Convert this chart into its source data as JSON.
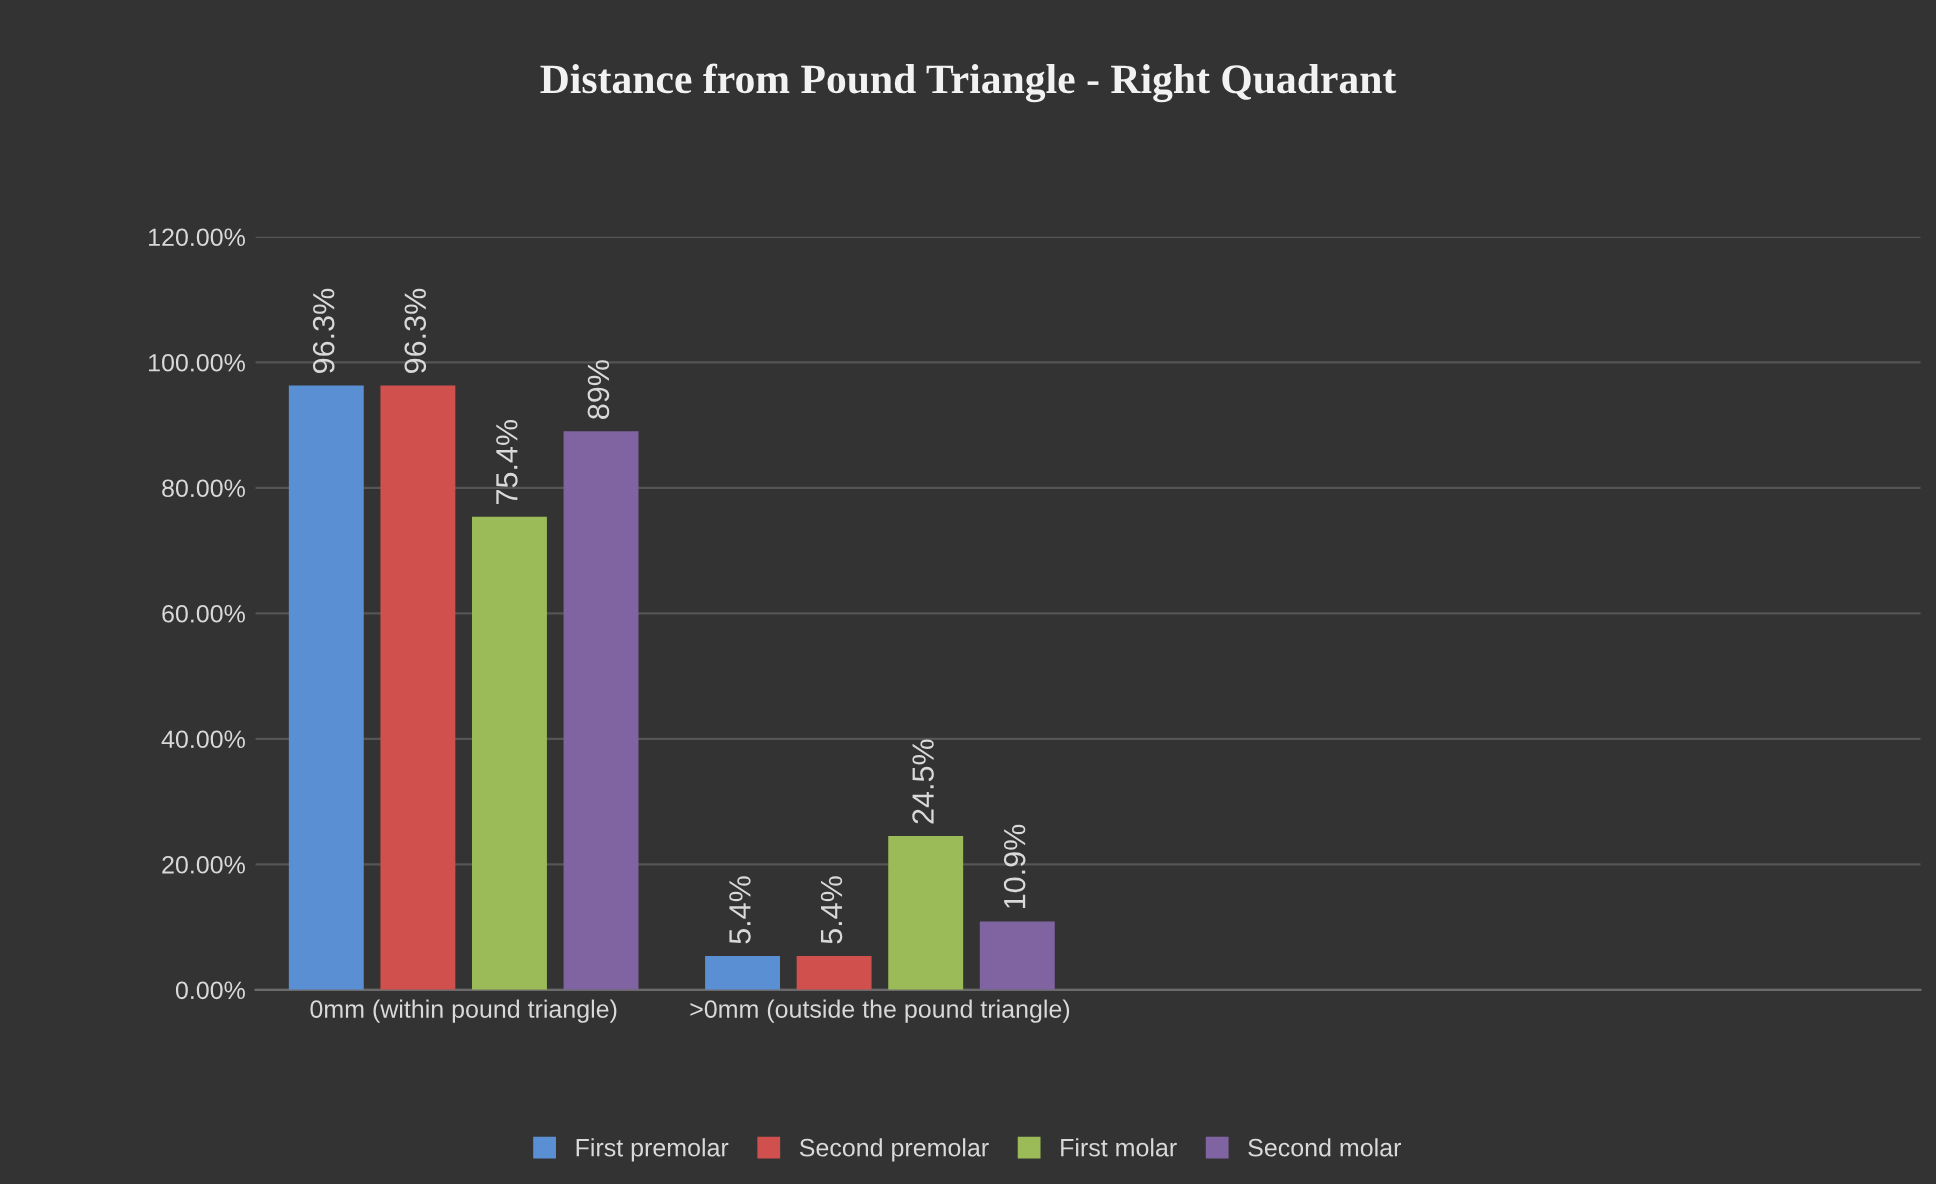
{
  "chart_data": {
    "type": "bar",
    "title": "Distance from Pound Triangle - Right Quadrant",
    "categories": [
      "0mm (within pound triangle)",
      ">0mm (outside the pound triangle)",
      null,
      null
    ],
    "series": [
      {
        "name": "First premolar",
        "color": "#5b8fd4",
        "values": [
          96.3,
          5.4,
          null,
          null
        ],
        "value_labels": [
          "96.3%",
          "5.4%",
          null,
          null
        ]
      },
      {
        "name": "Second premolar",
        "color": "#d0504e",
        "values": [
          96.3,
          5.4,
          null,
          null
        ],
        "value_labels": [
          "96.3%",
          "5.4%",
          null,
          null
        ]
      },
      {
        "name": "First molar",
        "color": "#9bbb59",
        "values": [
          75.4,
          24.5,
          null,
          null
        ],
        "value_labels": [
          "75.4%",
          "24.5%",
          null,
          null
        ]
      },
      {
        "name": "Second molar",
        "color": "#8064a2",
        "values": [
          89,
          10.9,
          null,
          null
        ],
        "value_labels": [
          "89%",
          "10.9%",
          null,
          null
        ]
      }
    ],
    "ylim": [
      0,
      120
    ],
    "yticks": [
      {
        "value": 0,
        "label": "0.00%"
      },
      {
        "value": 20,
        "label": "20.00%"
      },
      {
        "value": 40,
        "label": "40.00%"
      },
      {
        "value": 60,
        "label": "60.00%"
      },
      {
        "value": 80,
        "label": "80.00%"
      },
      {
        "value": 100,
        "label": "100.00%"
      },
      {
        "value": 120,
        "label": "120.00%"
      }
    ],
    "grid": "y",
    "legend": "bottom"
  }
}
